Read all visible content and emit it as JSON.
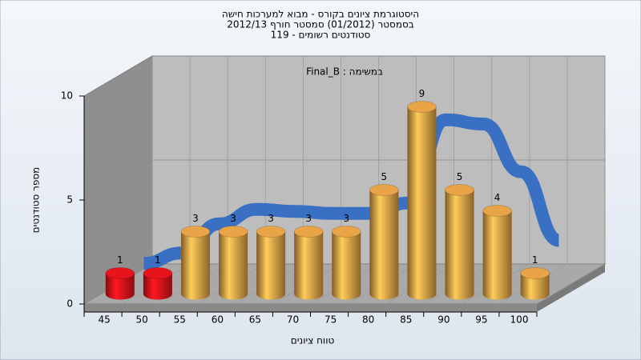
{
  "chart_data": {
    "type": "bar",
    "title": [
      "היסטוגרמת ציונים בקורס - מבוא למערכות חישה",
      "בסמסטר  (01/2012)  סמסטר חורף 2012/13",
      "סטודנטים רשומים - 119"
    ],
    "subtitle": "במשימה : Final_B",
    "x_label": "טווח ציונים",
    "y_label": "מספר סטודנטים",
    "categories": [
      "45",
      "50",
      "55",
      "60",
      "65",
      "70",
      "75",
      "80",
      "85",
      "90",
      "95",
      "100"
    ],
    "series": [
      {
        "type": "bar",
        "values": [
          1,
          1,
          3,
          3,
          3,
          3,
          3,
          5,
          9,
          5,
          4,
          1
        ],
        "colors": [
          "#e8141b",
          "#e8141b",
          "#e9a447",
          "#e9a447",
          "#e9a447",
          "#e9a447",
          "#e9a447",
          "#e9a447",
          "#e9a447",
          "#e9a447",
          "#e9a447",
          "#e9a447"
        ]
      },
      {
        "type": "line",
        "color": "#3a70c4",
        "values": [
          0.8,
          1.3,
          2.7,
          3.4,
          3.3,
          3.2,
          3.2,
          3.7,
          7.7,
          7.5,
          5.2,
          1.9
        ]
      }
    ],
    "ylim": [
      0,
      10
    ],
    "yticks": [
      0,
      5,
      10
    ],
    "grid": true
  }
}
